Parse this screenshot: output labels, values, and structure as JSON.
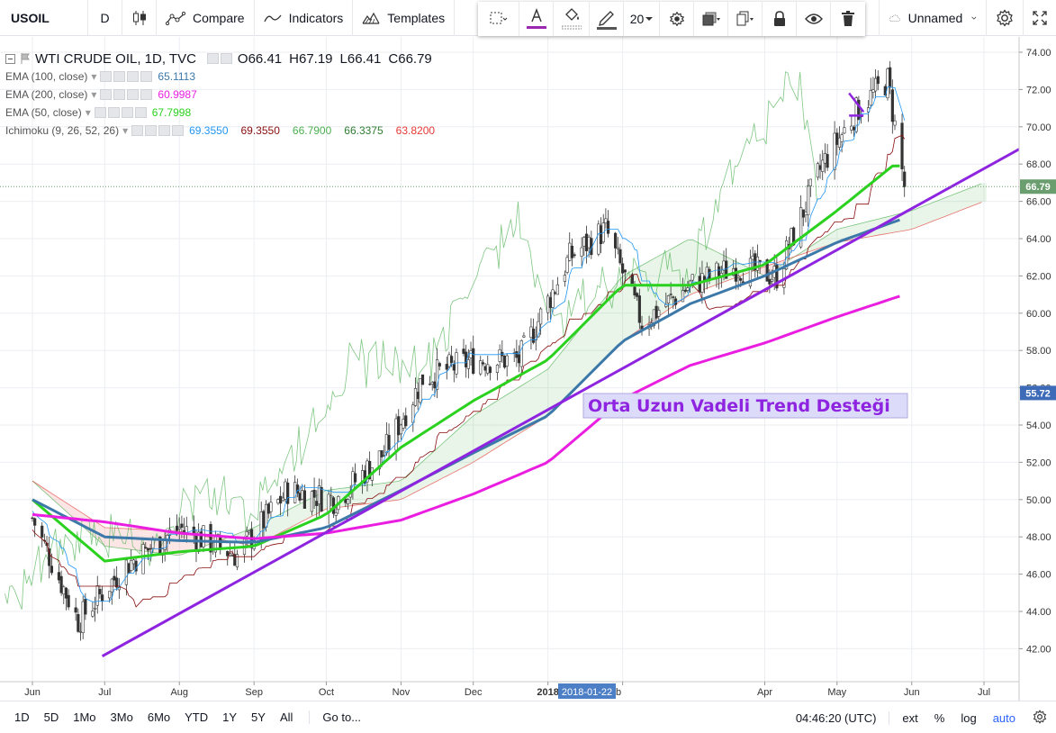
{
  "toolbar": {
    "symbol": "USOIL",
    "interval": "D",
    "compare_label": "Compare",
    "indicators_label": "Indicators",
    "templates_label": "Templates",
    "font_size": "20",
    "layout_name": "Unnamed",
    "accent_color": "#9c27b0"
  },
  "legend": {
    "title": "WTI CRUDE OIL, 1D, TVC",
    "open": "O66.41",
    "high": "H67.19",
    "low": "L66.41",
    "close": "C66.79",
    "indicators": [
      {
        "name": "EMA (100, close)",
        "values": [
          "65.1113"
        ],
        "colors": [
          "#3c78a8"
        ]
      },
      {
        "name": "EMA (200, close)",
        "values": [
          "60.9987"
        ],
        "colors": [
          "#e91ee0"
        ]
      },
      {
        "name": "EMA (50, close)",
        "values": [
          "67.7998"
        ],
        "colors": [
          "#2bd11f"
        ]
      },
      {
        "name": "Ichimoku (9, 26, 52, 26)",
        "values": [
          "69.3550",
          "69.3550",
          "66.7900",
          "66.3375",
          "63.8200"
        ],
        "colors": [
          "#2196f3",
          "#880e0e",
          "#4caf50",
          "#2e7d32",
          "#e53935"
        ]
      }
    ]
  },
  "chart_data": {
    "type": "line",
    "title": "WTI CRUDE OIL, 1D, TVC",
    "x_labels": [
      "Jun",
      "Jul",
      "Aug",
      "Sep",
      "Oct",
      "Nov",
      "Dec",
      "2018",
      "b",
      "Apr",
      "May",
      "Jun",
      "Jul"
    ],
    "y_ticks": [
      42.0,
      44.0,
      46.0,
      48.0,
      50.0,
      52.0,
      54.0,
      56.0,
      58.0,
      60.0,
      62.0,
      64.0,
      66.0,
      68.0,
      70.0,
      72.0,
      74.0
    ],
    "ylim": [
      40.8,
      75.0
    ],
    "price_labels": [
      {
        "label": "66.79",
        "value": 66.79,
        "color": "#6a9e6e"
      },
      {
        "label": "55.72",
        "value": 55.72,
        "color": "#3d6bb8"
      }
    ],
    "crosshair_date": "2018-01-22",
    "annotation": "Orta Uzun Vadeli Trend Desteği",
    "price": {
      "name": "USOIL close",
      "x": [
        "2017-06-01",
        "2017-06-20",
        "2017-07-10",
        "2017-08-01",
        "2017-08-25",
        "2017-09-15",
        "2017-10-05",
        "2017-10-25",
        "2017-11-10",
        "2017-12-01",
        "2017-12-20",
        "2018-01-10",
        "2018-01-25",
        "2018-02-09",
        "2018-03-01",
        "2018-03-20",
        "2018-04-06",
        "2018-04-25",
        "2018-05-10",
        "2018-05-22",
        "2018-05-29"
      ],
      "y": [
        49.0,
        43.5,
        46.5,
        48.5,
        47.0,
        50.5,
        50.0,
        52.5,
        56.5,
        57.5,
        57.5,
        63.0,
        64.5,
        59.5,
        61.5,
        62.5,
        62.0,
        68.0,
        71.0,
        72.5,
        66.8
      ]
    },
    "series": [
      {
        "name": "EMA (50, close)",
        "color": "#2bd11f",
        "x": [
          "2017-06-01",
          "2017-07-01",
          "2017-08-01",
          "2017-09-01",
          "2017-10-01",
          "2017-11-01",
          "2017-12-01",
          "2018-01-01",
          "2018-02-01",
          "2018-03-01",
          "2018-04-01",
          "2018-05-01",
          "2018-05-25",
          "2018-05-29"
        ],
        "y": [
          50.0,
          46.7,
          47.2,
          47.5,
          49.2,
          52.8,
          55.3,
          57.5,
          61.5,
          61.5,
          62.6,
          65.5,
          68.0,
          67.8
        ]
      },
      {
        "name": "EMA (100, close)",
        "color": "#3c78a8",
        "x": [
          "2017-06-01",
          "2017-07-01",
          "2017-08-01",
          "2017-09-01",
          "2017-10-01",
          "2017-11-01",
          "2017-12-01",
          "2018-01-01",
          "2018-02-01",
          "2018-03-01",
          "2018-04-01",
          "2018-05-01",
          "2018-05-29"
        ],
        "y": [
          50.0,
          48.0,
          47.8,
          47.7,
          48.5,
          50.5,
          52.5,
          54.5,
          58.5,
          60.5,
          62.0,
          63.8,
          65.1
        ]
      },
      {
        "name": "EMA (200, close)",
        "color": "#e91ee0",
        "x": [
          "2017-06-01",
          "2017-07-01",
          "2017-08-01",
          "2017-09-01",
          "2017-10-01",
          "2017-11-01",
          "2017-12-01",
          "2018-01-01",
          "2018-02-01",
          "2018-03-01",
          "2018-04-01",
          "2018-05-01",
          "2018-05-29"
        ],
        "y": [
          49.2,
          48.8,
          48.2,
          47.9,
          48.2,
          48.9,
          50.3,
          52.0,
          55.4,
          57.2,
          58.4,
          59.8,
          61.0
        ]
      }
    ],
    "trendlines": [
      {
        "label": "Orta Uzun Vadeli Trend Desteği",
        "color": "#8e24e0",
        "x": [
          "2017-06-30",
          "2018-07-31"
        ],
        "y": [
          41.6,
          69.9
        ]
      }
    ],
    "cloud": {
      "x": [
        "2017-06-01",
        "2017-07-01",
        "2017-08-01",
        "2017-09-01",
        "2017-10-01",
        "2017-11-01",
        "2017-12-01",
        "2018-01-01",
        "2018-02-01",
        "2018-03-01",
        "2018-04-01",
        "2018-05-01",
        "2018-06-01",
        "2018-07-01"
      ],
      "span_a": [
        51.0,
        47.5,
        47.0,
        48.5,
        50.5,
        51.0,
        54.5,
        57.0,
        62.0,
        64.0,
        62.0,
        64.5,
        65.5,
        67.0
      ],
      "span_b": [
        51.0,
        48.5,
        48.3,
        47.5,
        49.5,
        50.0,
        52.0,
        54.5,
        58.5,
        61.0,
        62.5,
        63.8,
        64.5,
        66.0
      ],
      "bull_color": "#4caf50",
      "bear_color": "#e53935"
    }
  },
  "bottom": {
    "ranges": [
      "1D",
      "5D",
      "1Mo",
      "3Mo",
      "6Mo",
      "YTD",
      "1Y",
      "5Y",
      "All"
    ],
    "goto": "Go to...",
    "clock": "04:46:20 (UTC)",
    "options": [
      "ext",
      "%",
      "log",
      "auto"
    ]
  }
}
